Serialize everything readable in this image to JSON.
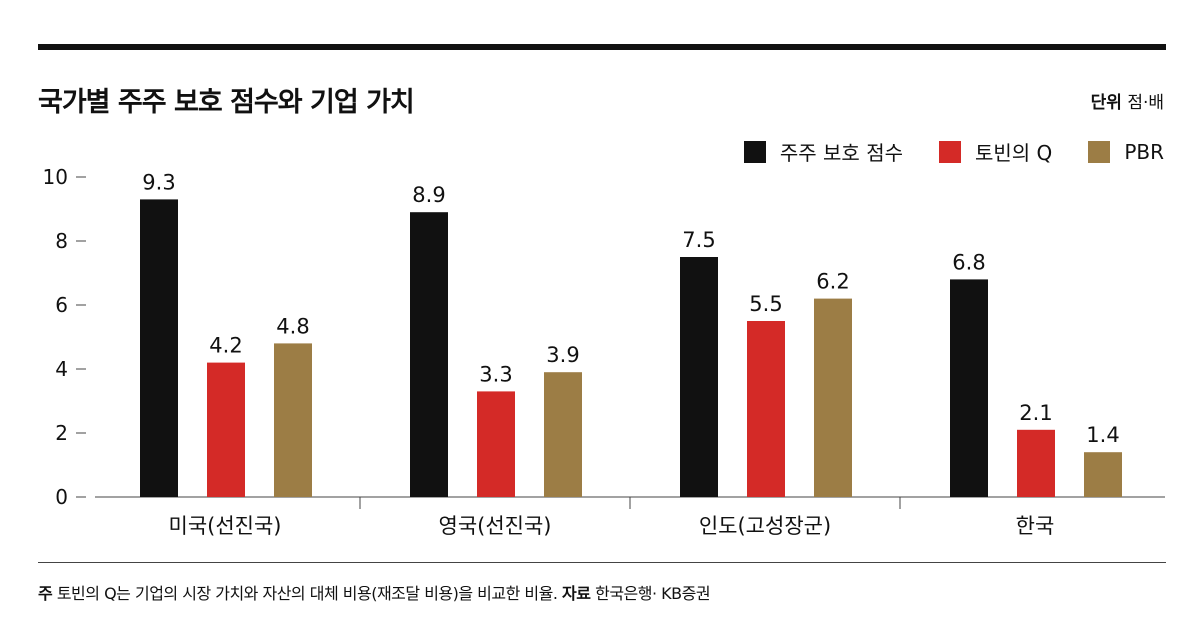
{
  "title": "국가별 주주 보호 점수와 기업 가치",
  "unit_label": "단위",
  "unit_value": "점·배",
  "chart_data": {
    "type": "bar",
    "title": "국가별 주주 보호 점수와 기업 가치",
    "categories": [
      "미국(선진국)",
      "영국(선진국)",
      "인도(고성장군)",
      "한국"
    ],
    "series": [
      {
        "name": "주주 보호 점수",
        "color": "#111111",
        "values": [
          9.3,
          8.9,
          7.5,
          6.8
        ]
      },
      {
        "name": "토빈의 Q",
        "color": "#d42a27",
        "values": [
          4.2,
          3.3,
          5.5,
          2.1
        ]
      },
      {
        "name": "PBR",
        "color": "#9c7d45",
        "values": [
          4.8,
          3.9,
          6.2,
          1.4
        ]
      }
    ],
    "ylim": [
      0,
      10
    ],
    "yticks": [
      "0",
      "2",
      "4",
      "6",
      "8",
      "10"
    ],
    "legend": "top-right",
    "grid": false
  },
  "footnote": {
    "note_label": "주",
    "note_text": "토빈의 Q는 기업의 시장 가치와 자산의 대체 비용(재조달 비용)을 비교한 비율.",
    "source_label": "자료",
    "source_text": "한국은행· KB증권"
  }
}
